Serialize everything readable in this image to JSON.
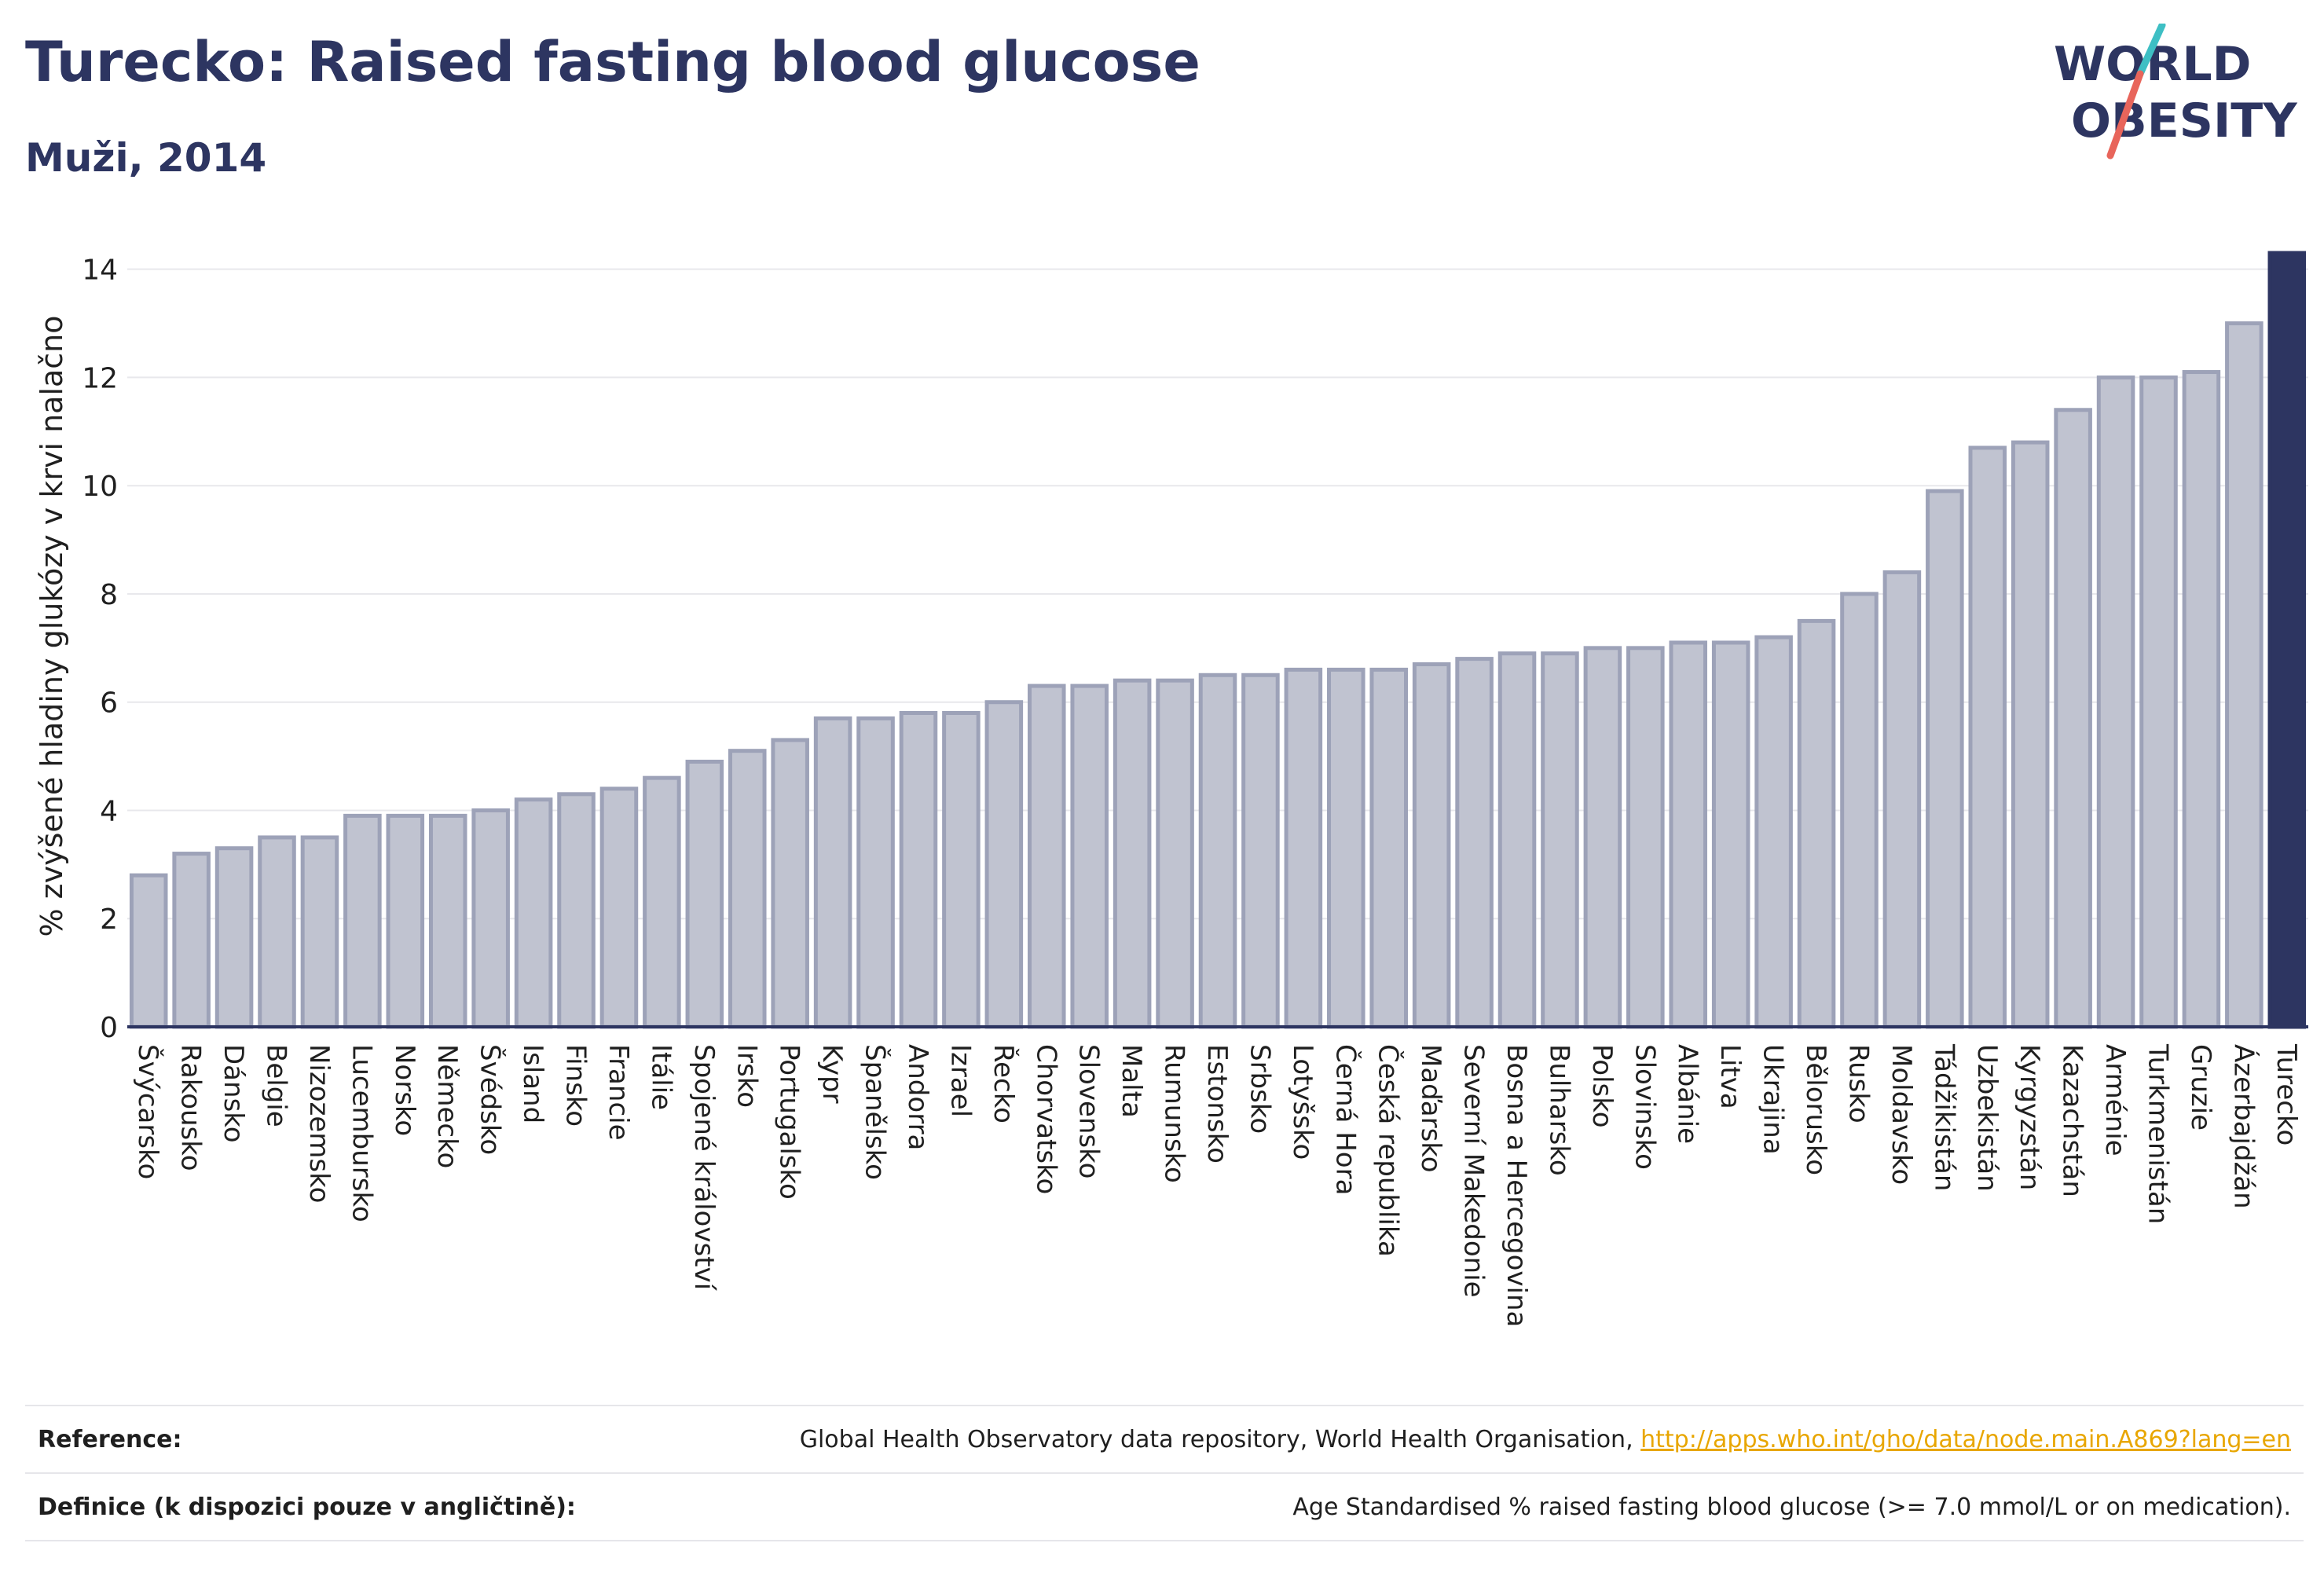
{
  "header": {
    "title": "Turecko: Raised fasting blood glucose",
    "subtitle": "Muži, 2014"
  },
  "logo": {
    "line1": "WORLD",
    "line2": "OBESITY",
    "colors": {
      "text": "#2d3561",
      "slash_top": "#3ebfc4",
      "slash_bottom": "#e8655b"
    }
  },
  "chart_data": {
    "type": "bar",
    "title": "Turecko: Raised fasting blood glucose",
    "subtitle": "Muži, 2014",
    "xlabel": "",
    "ylabel": "% zvýšené hladiny glukózy v krvi nalačno",
    "ylim": [
      0,
      14.3
    ],
    "yticks": [
      0,
      2,
      4,
      6,
      8,
      10,
      12,
      14
    ],
    "grid": true,
    "highlight": "Turecko",
    "colors": {
      "bar": "#c0c3d0",
      "bar_border": "#9da2b8",
      "highlight": "#2d3561"
    },
    "categories": [
      "Švýcarsko",
      "Rakousko",
      "Dánsko",
      "Belgie",
      "Nizozemsko",
      "Lucembursko",
      "Norsko",
      "Německo",
      "Švédsko",
      "Island",
      "Finsko",
      "Francie",
      "Itálie",
      "Spojené království",
      "Irsko",
      "Portugalsko",
      "Kypr",
      "Španělsko",
      "Andorra",
      "Izrael",
      "Řecko",
      "Chorvatsko",
      "Slovensko",
      "Malta",
      "Rumunsko",
      "Estonsko",
      "Srbsko",
      "Lotyšsko",
      "Černá Hora",
      "Česká republika",
      "Maďarsko",
      "Severní Makedonie",
      "Bosna a Hercegovina",
      "Bulharsko",
      "Polsko",
      "Slovinsko",
      "Albánie",
      "Litva",
      "Ukrajina",
      "Bělorusko",
      "Rusko",
      "Moldavsko",
      "Tádžikistán",
      "Uzbekistán",
      "Kyrgyzstán",
      "Kazachstán",
      "Arménie",
      "Turkmenistán",
      "Gruzie",
      "Ázerbajdžán",
      "Turecko"
    ],
    "values": [
      2.8,
      3.2,
      3.3,
      3.5,
      3.5,
      3.9,
      3.9,
      3.9,
      4.0,
      4.2,
      4.3,
      4.4,
      4.6,
      4.9,
      5.1,
      5.3,
      5.7,
      5.7,
      5.8,
      5.8,
      6.0,
      6.3,
      6.3,
      6.4,
      6.4,
      6.5,
      6.5,
      6.6,
      6.6,
      6.6,
      6.7,
      6.8,
      6.9,
      6.9,
      7.0,
      7.0,
      7.1,
      7.1,
      7.2,
      7.5,
      8.0,
      8.4,
      9.9,
      10.7,
      10.8,
      11.4,
      12.0,
      12.0,
      12.1,
      13.0,
      14.3
    ]
  },
  "footer": {
    "reference_label": "Reference:",
    "reference_text": "Global Health Observatory data repository, World Health Organisation, ",
    "reference_link": "http://apps.who.int/gho/data/node.main.A869?lang=en",
    "definition_label": "Definice (k dispozici pouze v angličtině):",
    "definition_text": "Age Standardised % raised fasting blood glucose (>= 7.0 mmol/L or on medication)."
  }
}
